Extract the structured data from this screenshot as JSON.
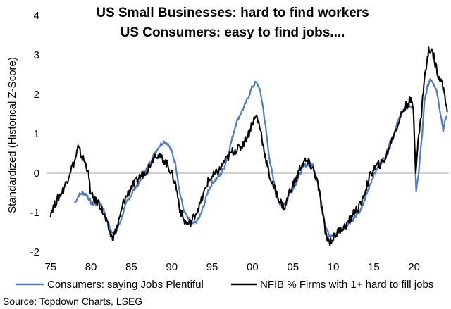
{
  "chart_data": {
    "type": "line",
    "title": "US Small Businesses: hard to find workers",
    "subtitle": "US Consumers: easy to find jobs....",
    "xlabel": "",
    "ylabel": "Standardized (Historical Z-Score)",
    "xlim": [
      1974.5,
      2024.3
    ],
    "ylim": [
      -2,
      4
    ],
    "x_ticks": [
      1975,
      1980,
      1985,
      1990,
      1995,
      2000,
      2005,
      2010,
      2015,
      2020
    ],
    "x_tick_labels": [
      "75",
      "80",
      "85",
      "90",
      "95",
      "00",
      "05",
      "10",
      "15",
      "20"
    ],
    "y_ticks": [
      -2,
      -1,
      0,
      1,
      2,
      3,
      4
    ],
    "y_tick_labels": [
      "-2",
      "-1",
      "0",
      "1",
      "2",
      "3",
      "4"
    ],
    "legend_position": "bottom",
    "source": "Source: Topdown Charts, LSEG",
    "series": [
      {
        "name": "Consumers: saying Jobs Plentiful",
        "color": "#4f7cc4",
        "points": [
          [
            1978.0,
            -0.75
          ],
          [
            1978.5,
            -0.55
          ],
          [
            1979.0,
            -0.5
          ],
          [
            1979.5,
            -0.55
          ],
          [
            1980.0,
            -0.75
          ],
          [
            1980.5,
            -0.8
          ],
          [
            1981.0,
            -0.7
          ],
          [
            1981.5,
            -0.9
          ],
          [
            1982.0,
            -1.2
          ],
          [
            1982.5,
            -1.45
          ],
          [
            1983.0,
            -1.55
          ],
          [
            1983.5,
            -1.3
          ],
          [
            1984.0,
            -1.0
          ],
          [
            1984.5,
            -0.7
          ],
          [
            1985.0,
            -0.55
          ],
          [
            1985.5,
            -0.35
          ],
          [
            1986.0,
            -0.25
          ],
          [
            1986.5,
            -0.05
          ],
          [
            1987.0,
            0.15
          ],
          [
            1987.5,
            0.35
          ],
          [
            1988.0,
            0.55
          ],
          [
            1988.5,
            0.7
          ],
          [
            1989.0,
            0.8
          ],
          [
            1989.5,
            0.75
          ],
          [
            1990.0,
            0.55
          ],
          [
            1990.5,
            0.2
          ],
          [
            1991.0,
            -0.5
          ],
          [
            1991.5,
            -0.95
          ],
          [
            1992.0,
            -1.15
          ],
          [
            1992.5,
            -1.3
          ],
          [
            1993.0,
            -1.25
          ],
          [
            1993.5,
            -1.1
          ],
          [
            1994.0,
            -0.8
          ],
          [
            1994.5,
            -0.45
          ],
          [
            1995.0,
            -0.25
          ],
          [
            1995.5,
            -0.15
          ],
          [
            1996.0,
            -0.05
          ],
          [
            1996.5,
            0.15
          ],
          [
            1997.0,
            0.5
          ],
          [
            1997.5,
            0.9
          ],
          [
            1998.0,
            1.3
          ],
          [
            1998.5,
            1.5
          ],
          [
            1999.0,
            1.7
          ],
          [
            1999.5,
            1.95
          ],
          [
            2000.0,
            2.2
          ],
          [
            2000.4,
            2.3
          ],
          [
            2000.8,
            2.2
          ],
          [
            2001.2,
            1.8
          ],
          [
            2001.6,
            1.2
          ],
          [
            2002.0,
            0.5
          ],
          [
            2002.5,
            -0.1
          ],
          [
            2003.0,
            -0.55
          ],
          [
            2003.5,
            -0.85
          ],
          [
            2004.0,
            -0.75
          ],
          [
            2004.5,
            -0.55
          ],
          [
            2005.0,
            -0.4
          ],
          [
            2005.5,
            -0.2
          ],
          [
            2006.0,
            0.05
          ],
          [
            2006.5,
            0.2
          ],
          [
            2007.0,
            0.25
          ],
          [
            2007.5,
            0.2
          ],
          [
            2008.0,
            -0.15
          ],
          [
            2008.5,
            -0.7
          ],
          [
            2009.0,
            -1.3
          ],
          [
            2009.5,
            -1.6
          ],
          [
            2010.0,
            -1.6
          ],
          [
            2010.5,
            -1.5
          ],
          [
            2011.0,
            -1.4
          ],
          [
            2011.5,
            -1.35
          ],
          [
            2012.0,
            -1.25
          ],
          [
            2012.5,
            -1.15
          ],
          [
            2013.0,
            -1.05
          ],
          [
            2013.5,
            -0.9
          ],
          [
            2014.0,
            -0.6
          ],
          [
            2014.5,
            -0.3
          ],
          [
            2015.0,
            -0.05
          ],
          [
            2015.5,
            0.15
          ],
          [
            2016.0,
            0.3
          ],
          [
            2016.5,
            0.45
          ],
          [
            2017.0,
            0.8
          ],
          [
            2017.5,
            1.0
          ],
          [
            2018.0,
            1.3
          ],
          [
            2018.5,
            1.55
          ],
          [
            2019.0,
            1.65
          ],
          [
            2019.5,
            1.7
          ],
          [
            2019.9,
            1.65
          ],
          [
            2020.25,
            -0.5
          ],
          [
            2020.6,
            0.1
          ],
          [
            2021.0,
            1.0
          ],
          [
            2021.3,
            1.85
          ],
          [
            2021.6,
            2.15
          ],
          [
            2022.0,
            2.4
          ],
          [
            2022.4,
            2.3
          ],
          [
            2022.8,
            2.1
          ],
          [
            2023.2,
            1.6
          ],
          [
            2023.6,
            1.1
          ],
          [
            2024.0,
            1.45
          ]
        ]
      },
      {
        "name": "NFIB % Firms with 1+ hard to fill jobs",
        "color": "#000000",
        "points": [
          [
            1975.0,
            -1.0
          ],
          [
            1975.5,
            -0.8
          ],
          [
            1976.0,
            -0.6
          ],
          [
            1976.5,
            -0.45
          ],
          [
            1977.0,
            -0.2
          ],
          [
            1977.5,
            0.1
          ],
          [
            1978.0,
            0.3
          ],
          [
            1978.4,
            0.65
          ],
          [
            1978.8,
            0.45
          ],
          [
            1979.2,
            0.3
          ],
          [
            1979.6,
            0.1
          ],
          [
            1980.0,
            -0.55
          ],
          [
            1980.5,
            -0.7
          ],
          [
            1981.0,
            -0.75
          ],
          [
            1981.5,
            -1.0
          ],
          [
            1982.0,
            -1.3
          ],
          [
            1982.6,
            -1.65
          ],
          [
            1983.0,
            -1.5
          ],
          [
            1983.5,
            -1.2
          ],
          [
            1984.0,
            -0.75
          ],
          [
            1984.5,
            -0.55
          ],
          [
            1985.0,
            -0.35
          ],
          [
            1985.5,
            -0.25
          ],
          [
            1986.0,
            -0.1
          ],
          [
            1986.5,
            0.0
          ],
          [
            1987.0,
            0.1
          ],
          [
            1987.5,
            0.3
          ],
          [
            1988.0,
            0.5
          ],
          [
            1988.5,
            0.4
          ],
          [
            1989.0,
            0.35
          ],
          [
            1989.5,
            0.2
          ],
          [
            1990.0,
            0.0
          ],
          [
            1990.5,
            -0.3
          ],
          [
            1991.0,
            -0.9
          ],
          [
            1991.5,
            -1.2
          ],
          [
            1992.0,
            -1.3
          ],
          [
            1992.5,
            -1.2
          ],
          [
            1993.0,
            -1.0
          ],
          [
            1993.5,
            -0.8
          ],
          [
            1994.0,
            -0.5
          ],
          [
            1994.5,
            -0.2
          ],
          [
            1995.0,
            -0.1
          ],
          [
            1995.5,
            0.0
          ],
          [
            1996.0,
            0.1
          ],
          [
            1996.5,
            0.3
          ],
          [
            1997.0,
            0.4
          ],
          [
            1997.5,
            0.55
          ],
          [
            1998.0,
            0.6
          ],
          [
            1998.5,
            0.65
          ],
          [
            1999.0,
            0.8
          ],
          [
            1999.5,
            1.0
          ],
          [
            2000.0,
            1.3
          ],
          [
            2000.5,
            1.45
          ],
          [
            2001.0,
            1.1
          ],
          [
            2001.5,
            0.5
          ],
          [
            2002.0,
            0.0
          ],
          [
            2002.5,
            -0.3
          ],
          [
            2003.0,
            -0.55
          ],
          [
            2003.5,
            -0.75
          ],
          [
            2004.0,
            -0.9
          ],
          [
            2004.5,
            -0.5
          ],
          [
            2005.0,
            -0.3
          ],
          [
            2005.5,
            -0.1
          ],
          [
            2006.0,
            0.2
          ],
          [
            2006.5,
            0.3
          ],
          [
            2007.0,
            0.25
          ],
          [
            2007.5,
            0.1
          ],
          [
            2008.0,
            -0.2
          ],
          [
            2008.5,
            -0.8
          ],
          [
            2009.0,
            -1.5
          ],
          [
            2009.5,
            -1.75
          ],
          [
            2010.0,
            -1.65
          ],
          [
            2010.5,
            -1.5
          ],
          [
            2011.0,
            -1.4
          ],
          [
            2011.5,
            -1.35
          ],
          [
            2012.0,
            -1.2
          ],
          [
            2012.5,
            -1.0
          ],
          [
            2013.0,
            -0.9
          ],
          [
            2013.5,
            -0.75
          ],
          [
            2014.0,
            -0.4
          ],
          [
            2014.5,
            -0.1
          ],
          [
            2015.0,
            0.1
          ],
          [
            2015.5,
            0.2
          ],
          [
            2016.0,
            0.25
          ],
          [
            2016.5,
            0.4
          ],
          [
            2017.0,
            0.7
          ],
          [
            2017.5,
            1.0
          ],
          [
            2018.0,
            1.25
          ],
          [
            2018.5,
            1.55
          ],
          [
            2019.0,
            1.7
          ],
          [
            2019.5,
            1.85
          ],
          [
            2019.9,
            1.65
          ],
          [
            2020.2,
            0.1
          ],
          [
            2020.5,
            0.8
          ],
          [
            2020.9,
            1.5
          ],
          [
            2021.2,
            2.3
          ],
          [
            2021.5,
            2.7
          ],
          [
            2021.8,
            3.1
          ],
          [
            2022.2,
            3.15
          ],
          [
            2022.6,
            2.8
          ],
          [
            2023.0,
            2.5
          ],
          [
            2023.4,
            2.3
          ],
          [
            2023.8,
            2.0
          ],
          [
            2024.1,
            1.55
          ]
        ]
      }
    ]
  }
}
